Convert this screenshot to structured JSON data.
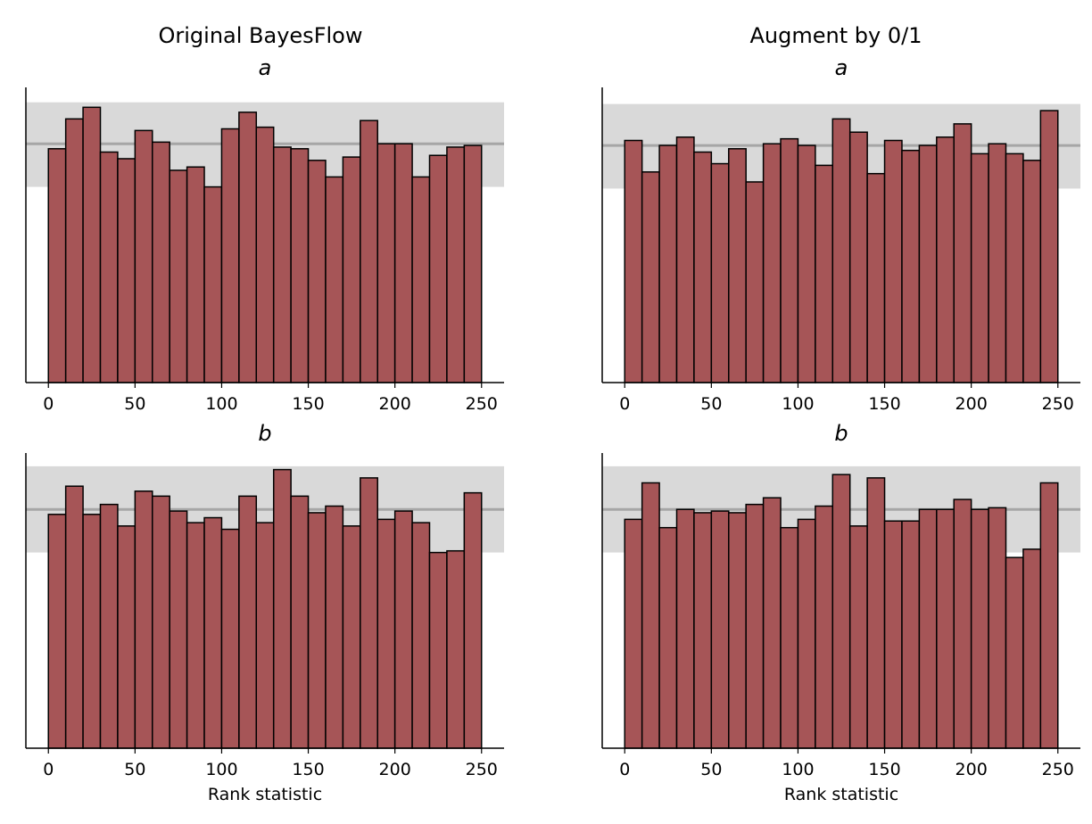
{
  "columns": [
    {
      "title": "Original BayesFlow"
    },
    {
      "title": "Augment by 0/1"
    }
  ],
  "colors": {
    "bar_fill": "#a65557",
    "bar_edge": "#000000",
    "band_fill": "#d9d9d9",
    "band_line": "#a6a6a6"
  },
  "chart_data": [
    {
      "type": "bar",
      "title": "a",
      "column": 0,
      "row": 0,
      "xlabel": "",
      "xlim": [
        -13,
        263
      ],
      "ylim": [
        0,
        178
      ],
      "xticks": [
        0,
        50,
        100,
        150,
        200,
        250
      ],
      "bin_width": 10,
      "x": [
        0,
        10,
        20,
        30,
        40,
        50,
        60,
        70,
        80,
        90,
        100,
        110,
        120,
        130,
        140,
        150,
        160,
        170,
        180,
        190,
        200,
        210,
        220,
        230,
        240
      ],
      "values": [
        141,
        159,
        166,
        139,
        135,
        152,
        145,
        128,
        130,
        118,
        153,
        163,
        154,
        142,
        141,
        134,
        124,
        136,
        158,
        144,
        144,
        124,
        137,
        142,
        143
      ],
      "band": {
        "low": 118,
        "mean": 144,
        "high": 169
      }
    },
    {
      "type": "bar",
      "title": "a",
      "column": 1,
      "row": 0,
      "xlabel": "",
      "xlim": [
        -13,
        263
      ],
      "ylim": [
        0,
        178
      ],
      "xticks": [
        0,
        50,
        100,
        150,
        200,
        250
      ],
      "bin_width": 10,
      "x": [
        0,
        10,
        20,
        30,
        40,
        50,
        60,
        70,
        80,
        90,
        100,
        110,
        120,
        130,
        140,
        150,
        160,
        170,
        180,
        190,
        200,
        210,
        220,
        230,
        240
      ],
      "values": [
        146,
        127,
        143,
        148,
        139,
        132,
        141,
        121,
        144,
        147,
        143,
        131,
        159,
        151,
        126,
        146,
        140,
        143,
        148,
        156,
        138,
        144,
        138,
        134,
        164
      ],
      "band": {
        "low": 117,
        "mean": 143,
        "high": 168
      }
    },
    {
      "type": "bar",
      "title": "b",
      "column": 0,
      "row": 1,
      "xlabel": "Rank statistic",
      "xlim": [
        -13,
        263
      ],
      "ylim": [
        0,
        178
      ],
      "xticks": [
        0,
        50,
        100,
        150,
        200,
        250
      ],
      "bin_width": 10,
      "x": [
        0,
        10,
        20,
        30,
        40,
        50,
        60,
        70,
        80,
        90,
        100,
        110,
        120,
        130,
        140,
        150,
        160,
        170,
        180,
        190,
        200,
        210,
        220,
        230,
        240
      ],
      "values": [
        141,
        158,
        141,
        147,
        134,
        155,
        152,
        143,
        136,
        139,
        132,
        152,
        136,
        168,
        152,
        142,
        146,
        134,
        163,
        138,
        143,
        136,
        118,
        119,
        154
      ],
      "band": {
        "low": 118,
        "mean": 144,
        "high": 170
      }
    },
    {
      "type": "bar",
      "title": "b",
      "column": 1,
      "row": 1,
      "xlabel": "Rank statistic",
      "xlim": [
        -13,
        263
      ],
      "ylim": [
        0,
        178
      ],
      "xticks": [
        0,
        50,
        100,
        150,
        200,
        250
      ],
      "bin_width": 10,
      "x": [
        0,
        10,
        20,
        30,
        40,
        50,
        60,
        70,
        80,
        90,
        100,
        110,
        120,
        130,
        140,
        150,
        160,
        170,
        180,
        190,
        200,
        210,
        220,
        230,
        240
      ],
      "values": [
        138,
        160,
        133,
        144,
        142,
        143,
        142,
        147,
        151,
        133,
        138,
        146,
        165,
        134,
        163,
        137,
        137,
        144,
        144,
        150,
        144,
        145,
        115,
        120,
        160
      ],
      "band": {
        "low": 118,
        "mean": 144,
        "high": 170
      }
    }
  ]
}
